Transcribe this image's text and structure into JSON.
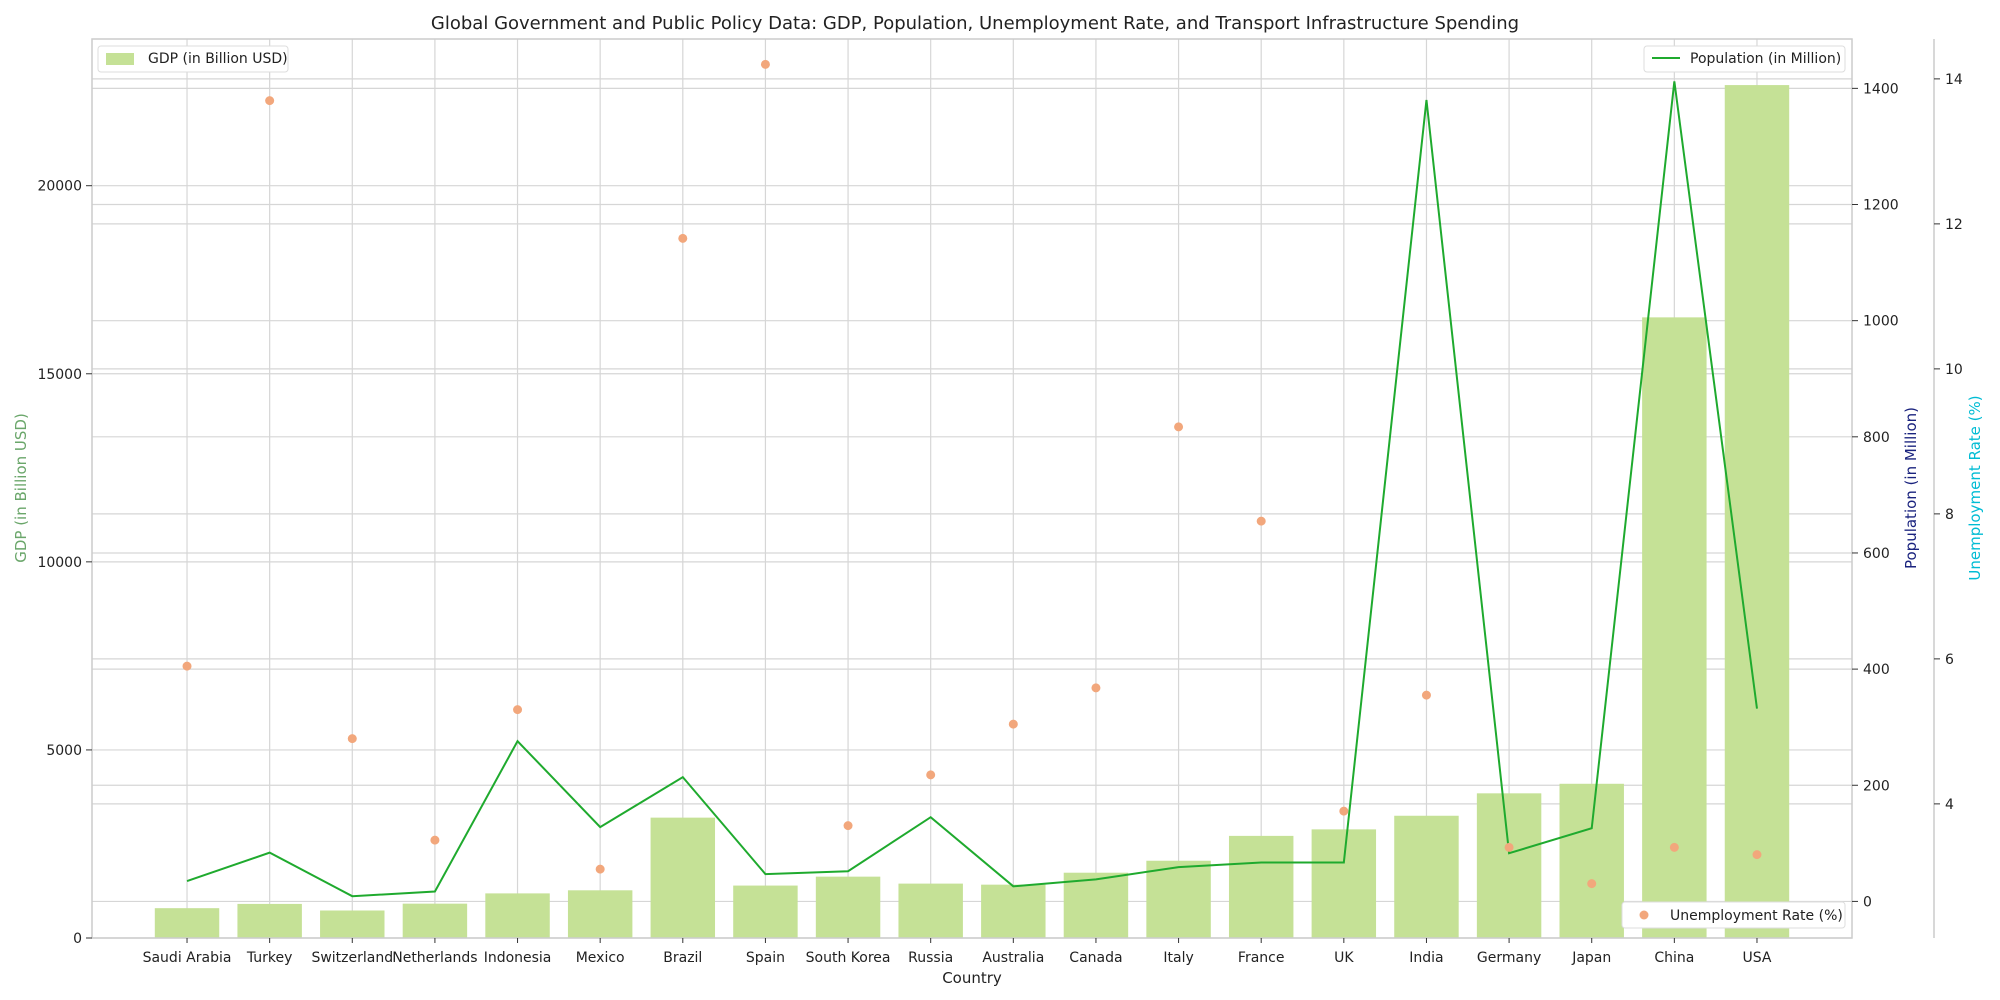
{
  "chart_data": {
    "type": "bar",
    "title": "Global Government and Public Policy Data: GDP, Population, Unemployment Rate, and Transport Infrastructure Spending",
    "xlabel": "Country",
    "categories": [
      "Saudi Arabia",
      "Turkey",
      "Switzerland",
      "Netherlands",
      "Indonesia",
      "Mexico",
      "Brazil",
      "Spain",
      "South Korea",
      "Russia",
      "Australia",
      "Canada",
      "Italy",
      "France",
      "UK",
      "India",
      "Germany",
      "Japan",
      "China",
      "USA"
    ],
    "grid": true,
    "axes": {
      "gdp": {
        "label": "GDP (in Billion USD)",
        "ylim": [
          0,
          23900
        ],
        "ticks": [
          0,
          5000,
          10000,
          15000,
          20000
        ],
        "color": "#6aa66a"
      },
      "population": {
        "label": "Population (in Million)",
        "ylim": [
          -63,
          1485
        ],
        "ticks": [
          0,
          200,
          400,
          600,
          800,
          1000,
          1200,
          1400
        ],
        "color": "#1a237e"
      },
      "unemployment": {
        "label": "Unemployment Rate (%)",
        "ylim": [
          2.15,
          14.55
        ],
        "ticks": [
          4,
          6,
          8,
          10,
          12,
          14
        ],
        "color": "#00bcd4"
      }
    },
    "series": [
      {
        "name": "GDP (in Billion USD)",
        "type": "bar",
        "axis": "gdp",
        "color": "#c5e196",
        "values": [
          793,
          906,
          731,
          913,
          1186,
          1268,
          3200,
          1394,
          1631,
          1446,
          1418,
          1736,
          2054,
          2715,
          2888,
          3250,
          3846,
          4100,
          16500,
          22675
        ]
      },
      {
        "name": "Population (in Million)",
        "type": "line",
        "axis": "population",
        "color": "#1faa2e",
        "values": [
          35,
          84,
          9,
          17,
          276,
          128,
          214,
          47,
          52,
          145,
          26,
          38,
          59,
          67,
          67,
          1380,
          83,
          126,
          1412,
          332
        ]
      },
      {
        "name": "Unemployment Rate (%)",
        "type": "scatter",
        "axis": "unemployment",
        "color": "#f2a77c",
        "values": [
          5.9,
          13.7,
          4.9,
          3.5,
          5.3,
          3.1,
          11.8,
          14.2,
          3.7,
          4.4,
          5.1,
          5.6,
          9.2,
          7.9,
          3.9,
          5.5,
          3.4,
          2.9,
          3.4,
          3.3
        ]
      }
    ],
    "legends": {
      "gdp": {
        "label": "GDP (in Billion USD)",
        "placement": "top-left"
      },
      "population": {
        "label": "Population (in Million)",
        "placement": "top-right"
      },
      "unemployment": {
        "label": "Unemployment Rate (%)",
        "placement": "bottom-right"
      }
    }
  }
}
